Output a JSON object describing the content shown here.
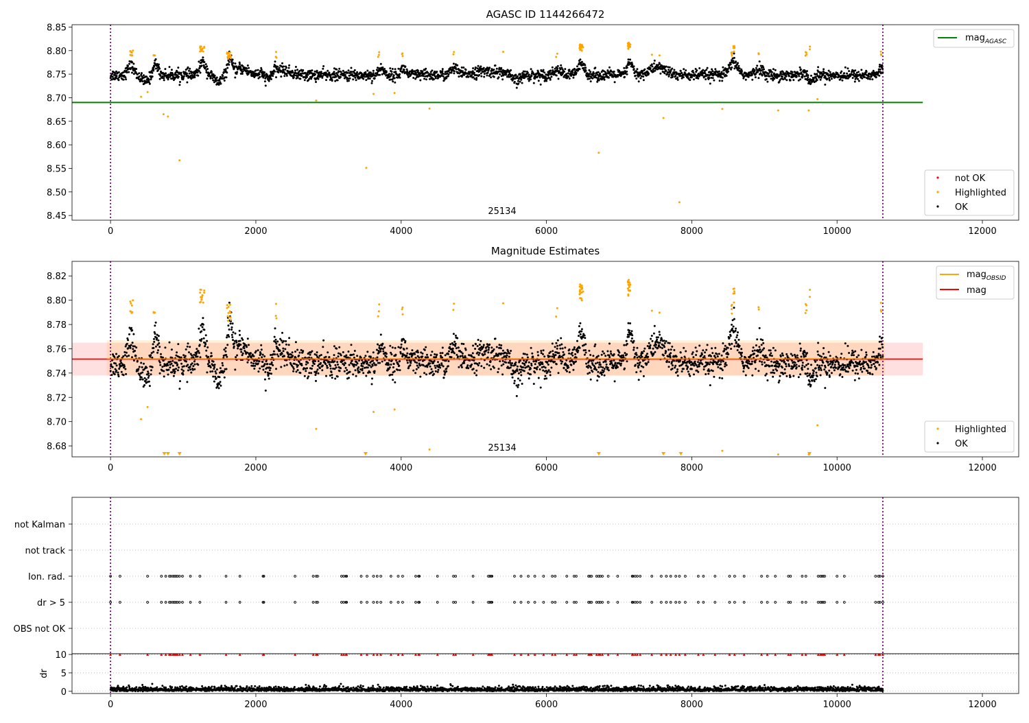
{
  "chart_data": [
    {
      "type": "scatter",
      "title": "AGASC ID 1144266472",
      "annotation": "25134",
      "xlim": [
        -530,
        12500
      ],
      "ylim": [
        8.44,
        8.855
      ],
      "x_ticks": [
        0,
        2000,
        4000,
        6000,
        8000,
        10000,
        12000
      ],
      "x_tick_labels": [
        "0",
        "2000",
        "4000",
        "6000",
        "8000",
        "10000",
        "12000"
      ],
      "y_ticks": [
        8.45,
        8.5,
        8.55,
        8.6,
        8.65,
        8.7,
        8.75,
        8.8,
        8.85
      ],
      "y_tick_labels": [
        "8.45",
        "8.50",
        "8.55",
        "8.60",
        "8.65",
        "8.70",
        "8.75",
        "8.80",
        "8.85"
      ],
      "vlines": [
        0,
        10630
      ],
      "hline": {
        "name": "mag_AGASC",
        "label_main": "mag",
        "label_sub": "AGASC",
        "y": 8.69,
        "x": [
          -530,
          11180
        ],
        "color": "#008000"
      },
      "legend_lines": [
        {
          "label_main": "mag",
          "label_sub": "AGASC",
          "color": "#008000"
        }
      ],
      "legend_points": [
        {
          "label": "not OK",
          "color": "#ff0000"
        },
        {
          "label": "Highlighted",
          "color": "#ffa500"
        },
        {
          "label": "OK",
          "color": "#000000"
        }
      ],
      "series": [
        {
          "name": "OK",
          "color": "#000000",
          "x_range": [
            0,
            10630
          ],
          "base": 8.748,
          "noise": 0.008,
          "n": 2600,
          "bumps": [
            [
              280,
              8.768,
              60
            ],
            [
              620,
              8.772,
              50
            ],
            [
              1270,
              8.775,
              60
            ],
            [
              1640,
              8.783,
              40
            ],
            [
              1800,
              8.762,
              130
            ],
            [
              2300,
              8.76,
              200
            ],
            [
              3730,
              8.762,
              50
            ],
            [
              4030,
              8.762,
              50
            ],
            [
              4730,
              8.762,
              60
            ],
            [
              5200,
              8.756,
              300
            ],
            [
              6150,
              8.758,
              80
            ],
            [
              6480,
              8.77,
              70
            ],
            [
              7150,
              8.775,
              50
            ],
            [
              7530,
              8.765,
              150
            ],
            [
              8580,
              8.775,
              80
            ],
            [
              8930,
              8.762,
              60
            ],
            [
              9580,
              8.76,
              60
            ],
            [
              10620,
              8.762,
              50
            ]
          ],
          "dips": [
            [
              480,
              8.735,
              80
            ],
            [
              1480,
              8.733,
              70
            ],
            [
              2170,
              8.732,
              60
            ],
            [
              5580,
              8.735,
              80
            ],
            [
              9630,
              8.727,
              50
            ]
          ]
        },
        {
          "name": "Highlighted",
          "color": "#ffa500",
          "clusters": [
            [
              290,
              8.796,
              20,
              8
            ],
            [
              600,
              8.79,
              10,
              3
            ],
            [
              1260,
              8.805,
              30,
              15
            ],
            [
              1630,
              8.79,
              30,
              12
            ],
            [
              2280,
              8.792,
              8,
              3
            ],
            [
              3690,
              8.79,
              8,
              3
            ],
            [
              4020,
              8.792,
              8,
              3
            ],
            [
              4720,
              8.792,
              8,
              2
            ],
            [
              5400,
              8.792,
              5,
              1
            ],
            [
              6140,
              8.792,
              8,
              2
            ],
            [
              6480,
              8.806,
              25,
              22
            ],
            [
              7140,
              8.81,
              20,
              16
            ],
            [
              7450,
              8.792,
              5,
              1
            ],
            [
              7560,
              8.792,
              5,
              1
            ],
            [
              8550,
              8.79,
              12,
              4
            ],
            [
              8580,
              8.803,
              12,
              6
            ],
            [
              8920,
              8.793,
              8,
              2
            ],
            [
              9570,
              8.795,
              12,
              4
            ],
            [
              9620,
              8.803,
              6,
              2
            ],
            [
              10610,
              8.793,
              8,
              3
            ]
          ],
          "points": [
            [
              420,
              8.702
            ],
            [
              510,
              8.712
            ],
            [
              730,
              8.665
            ],
            [
              790,
              8.66
            ],
            [
              950,
              8.567
            ],
            [
              2830,
              8.694
            ],
            [
              3520,
              8.551
            ],
            [
              3620,
              8.708
            ],
            [
              3910,
              8.71
            ],
            [
              4390,
              8.677
            ],
            [
              6720,
              8.583
            ],
            [
              7610,
              8.657
            ],
            [
              7830,
              8.478
            ],
            [
              8420,
              8.676
            ],
            [
              9190,
              8.673
            ],
            [
              9610,
              8.673
            ],
            [
              9730,
              8.697
            ]
          ]
        },
        {
          "name": "not OK",
          "color": "#ff0000",
          "points": []
        }
      ]
    },
    {
      "type": "scatter",
      "title": "Magnitude Estimates",
      "annotation": "25134",
      "xlim": [
        -530,
        12500
      ],
      "ylim": [
        8.671,
        8.832
      ],
      "x_ticks": [
        0,
        2000,
        4000,
        6000,
        8000,
        10000,
        12000
      ],
      "x_tick_labels": [
        "0",
        "2000",
        "4000",
        "6000",
        "8000",
        "10000",
        "12000"
      ],
      "y_ticks": [
        8.68,
        8.7,
        8.72,
        8.74,
        8.76,
        8.78,
        8.8,
        8.82
      ],
      "y_tick_labels": [
        "8.68",
        "8.70",
        "8.72",
        "8.74",
        "8.76",
        "8.78",
        "8.80",
        "8.82"
      ],
      "vlines": [
        0,
        10630
      ],
      "band": {
        "y": [
          8.738,
          8.765
        ],
        "x": [
          -530,
          11180
        ],
        "color": "#ff0000",
        "opacity": 0.12
      },
      "band_obsid": {
        "y": [
          8.738,
          8.767
        ],
        "x": [
          -50,
          10660
        ],
        "color": "#ffa500",
        "opacity": 0.15
      },
      "mag_line": {
        "name": "mag",
        "y": 8.7515,
        "x": [
          -530,
          11180
        ],
        "color": "#ff0000"
      },
      "mag_obsid_line": {
        "name": "mag_OBSID",
        "y": 8.7518,
        "x": [
          -50,
          10660
        ],
        "color": "#ffa500"
      },
      "legend_lines": [
        {
          "label_main": "mag",
          "label_sub": "OBSID",
          "color": "#ffa500"
        },
        {
          "label_main": "mag",
          "label_sub": "",
          "color": "#ff0000"
        }
      ],
      "legend_points": [
        {
          "label": "Highlighted",
          "color": "#ffa500"
        },
        {
          "label": "OK",
          "color": "#000000"
        }
      ],
      "off_axis_x": [
        740,
        790,
        950,
        3510,
        6720,
        7610,
        7850,
        9620
      ],
      "series_ref": "same OK and Highlighted points as the first panel"
    },
    {
      "type": "scatter",
      "title": "",
      "xlim": [
        -530,
        12500
      ],
      "x_ticks": [
        0,
        2000,
        4000,
        6000,
        8000,
        10000,
        12000
      ],
      "x_tick_labels": [
        "0",
        "2000",
        "4000",
        "6000",
        "8000",
        "10000",
        "12000"
      ],
      "vlines": [
        0,
        10630
      ],
      "categories": [
        "not Kalman",
        "not track",
        "Ion. rad.",
        "dr > 5",
        "OBS not OK"
      ],
      "flag_x": [
        0,
        130,
        510,
        700,
        760,
        810,
        830,
        860,
        880,
        900,
        920,
        950,
        990,
        1100,
        1230,
        1590,
        1780,
        2100,
        2110,
        2540,
        2790,
        2830,
        2850,
        3180,
        3210,
        3240,
        3250,
        3450,
        3530,
        3620,
        3670,
        3720,
        3860,
        3960,
        4020,
        4200,
        4240,
        4250,
        4500,
        4720,
        4750,
        4990,
        5200,
        5220,
        5240,
        5250,
        5560,
        5650,
        5750,
        5840,
        5960,
        6080,
        6120,
        6280,
        6380,
        6410,
        6580,
        6600,
        6620,
        6690,
        6720,
        6740,
        6770,
        6850,
        6980,
        7180,
        7190,
        7220,
        7250,
        7290,
        7450,
        7580,
        7650,
        7710,
        7780,
        7830,
        7910,
        8090,
        8160,
        8320,
        8520,
        8590,
        8720,
        8960,
        9040,
        9150,
        9330,
        9360,
        9520,
        9570,
        9740,
        9770,
        9790,
        9810,
        9830,
        10000,
        10100,
        10530,
        10570,
        10590,
        10630
      ],
      "flag_rows": [
        "Ion. rad.",
        "dr > 5"
      ]
    },
    {
      "type": "scatter",
      "title": "",
      "ylabel": "dr",
      "xlim": [
        -530,
        12500
      ],
      "ylim": [
        -0.6,
        10.2
      ],
      "y_ticks": [
        0,
        5,
        10
      ],
      "y_tick_labels": [
        "0",
        "5",
        "10"
      ],
      "x_ticks": [
        0,
        2000,
        4000,
        6000,
        8000,
        10000,
        12000
      ],
      "x_tick_labels": [
        "0",
        "2000",
        "4000",
        "6000",
        "8000",
        "10000",
        "12000"
      ],
      "vlines": [
        0,
        10630
      ],
      "clipped_marker_y": 10,
      "clipped_color": "#ff0000",
      "series_note": "dr values 0 to 2 for all observations"
    }
  ]
}
